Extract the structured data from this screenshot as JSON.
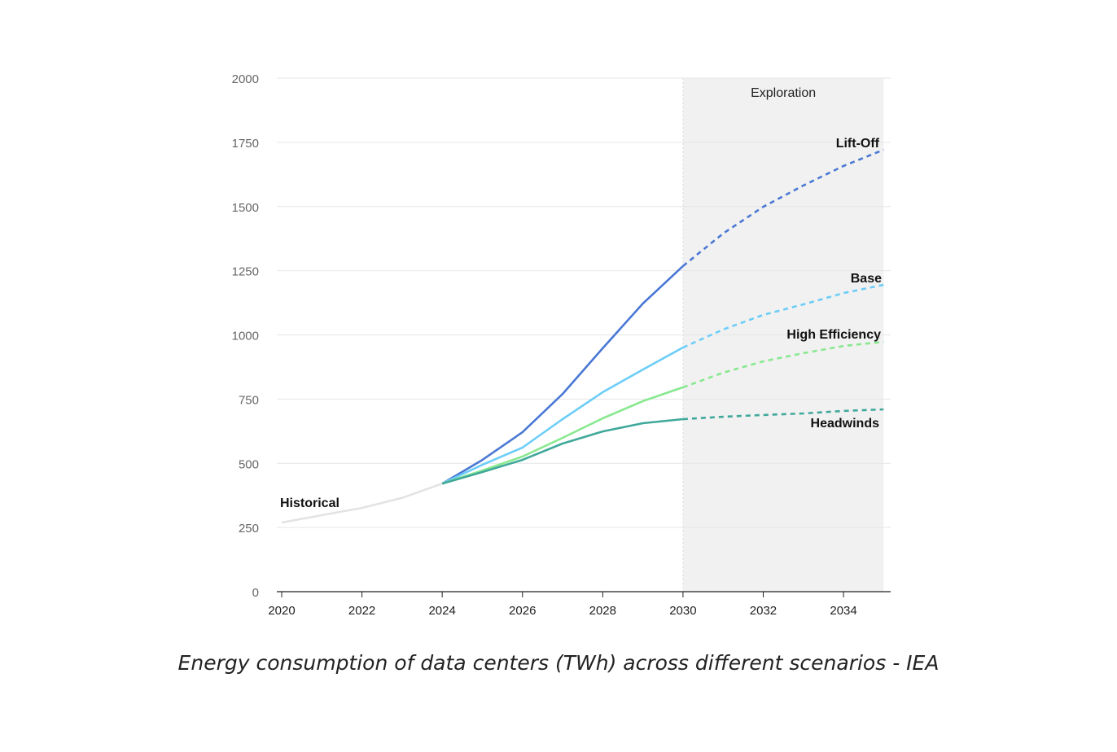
{
  "chart_data": {
    "type": "line",
    "title": "",
    "caption": "Energy consumption of data centers (TWh) across different scenarios - IEA",
    "xlabel": "",
    "ylabel": "",
    "xlim": [
      2020,
      2035
    ],
    "ylim": [
      0,
      2000
    ],
    "x_ticks": [
      "2020",
      "2022",
      "2024",
      "2026",
      "2028",
      "2030",
      "2032",
      "2034"
    ],
    "y_ticks": [
      "0",
      "250",
      "500",
      "750",
      "1000",
      "1250",
      "1500",
      "1750",
      "2000"
    ],
    "grid": "horizontal",
    "shaded_region": {
      "label": "Exploration",
      "from": 2030,
      "to": 2035,
      "color": "#f1f1f1"
    },
    "projection_style": "dashed after 2030",
    "series": [
      {
        "name": "Historical",
        "color": "#e3e3e3",
        "x": [
          2020,
          2021,
          2022,
          2023,
          2024
        ],
        "values": [
          269,
          298,
          326,
          365,
          421
        ]
      },
      {
        "name": "Lift-Off",
        "color": "#4a78d4",
        "x": [
          2024,
          2025,
          2026,
          2027,
          2028,
          2029,
          2030,
          2031,
          2032,
          2033,
          2034,
          2035
        ],
        "values": [
          421,
          513,
          621,
          770,
          948,
          1122,
          1268,
          1395,
          1499,
          1582,
          1658,
          1721
        ]
      },
      {
        "name": "Base",
        "color": "#6ccdf8",
        "x": [
          2024,
          2025,
          2026,
          2027,
          2028,
          2029,
          2030,
          2031,
          2032,
          2033,
          2034,
          2035
        ],
        "values": [
          421,
          494,
          561,
          672,
          777,
          865,
          951,
          1021,
          1078,
          1119,
          1163,
          1195
        ]
      },
      {
        "name": "High Efficiency",
        "color": "#88e88f",
        "x": [
          2024,
          2025,
          2026,
          2027,
          2028,
          2029,
          2030,
          2031,
          2032,
          2033,
          2034,
          2035
        ],
        "values": [
          421,
          472,
          526,
          599,
          675,
          742,
          796,
          853,
          897,
          929,
          957,
          973
        ]
      },
      {
        "name": "Headwinds",
        "color": "#3fa89a",
        "x": [
          2024,
          2025,
          2026,
          2027,
          2028,
          2029,
          2030,
          2031,
          2032,
          2033,
          2034,
          2035
        ],
        "values": [
          421,
          466,
          513,
          577,
          624,
          656,
          672,
          681,
          688,
          694,
          704,
          710
        ]
      }
    ]
  }
}
